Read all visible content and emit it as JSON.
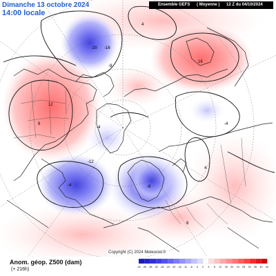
{
  "header": {
    "date_line": "Dimanche 13 octobre 2024",
    "time_line": "14:00 locale",
    "model_box": [
      "Ensemble GEFS",
      "( Moyenne )",
      "12 Z du 04/10/2024"
    ]
  },
  "copyright": "Copyright (C) 2024 Meteociel.fr",
  "footer": {
    "parameter": "Anom. géop. Z500 (dam)",
    "lead": "(+ 216h)"
  },
  "colorbar": {
    "ticks": [
      "-44",
      "-40",
      "-36",
      "-32",
      "-28",
      "-24",
      "-20",
      "-16",
      "-12",
      "-8",
      "-4",
      "0",
      "4",
      "8",
      "12",
      "16",
      "20",
      "24",
      "28",
      "32",
      "36",
      "40",
      "44"
    ],
    "colors": [
      "#1b1bb8",
      "#2424c8",
      "#3030d8",
      "#3e3ee6",
      "#5050ee",
      "#6565f2",
      "#7b7bf5",
      "#9393f8",
      "#abaafa",
      "#c3c3fc",
      "#dcdcfe",
      "#ffffff",
      "#ffdcdc",
      "#ffc2c2",
      "#ffa8a8",
      "#ff8f8f",
      "#ff7575",
      "#ff5c5c",
      "#ff4242",
      "#f52b2b",
      "#e01a1a",
      "#c80d0d"
    ]
  },
  "anomalies": [
    {
      "label": "-20",
      "kind": "negative",
      "color": "#5a5ae8"
    },
    {
      "label": "-16",
      "kind": "negative",
      "color": "#7777f0"
    },
    {
      "label": "-12",
      "kind": "negative",
      "color": "#8d8df5"
    },
    {
      "label": "-8",
      "kind": "negative",
      "color": "#a9a9f8"
    },
    {
      "label": "-4",
      "kind": "negative",
      "color": "#cfcffc"
    },
    {
      "label": "12",
      "kind": "positive",
      "color": "#ff9090"
    },
    {
      "label": "8",
      "kind": "positive",
      "color": "#ffb0b0"
    },
    {
      "label": "4",
      "kind": "positive",
      "color": "#ffd2d2"
    }
  ],
  "contour_labels": [
    "-20",
    "-16",
    "-8",
    "-4",
    "16",
    "12",
    "8",
    "4",
    "-4",
    "-12",
    "-4",
    "-8",
    "4",
    "8"
  ]
}
